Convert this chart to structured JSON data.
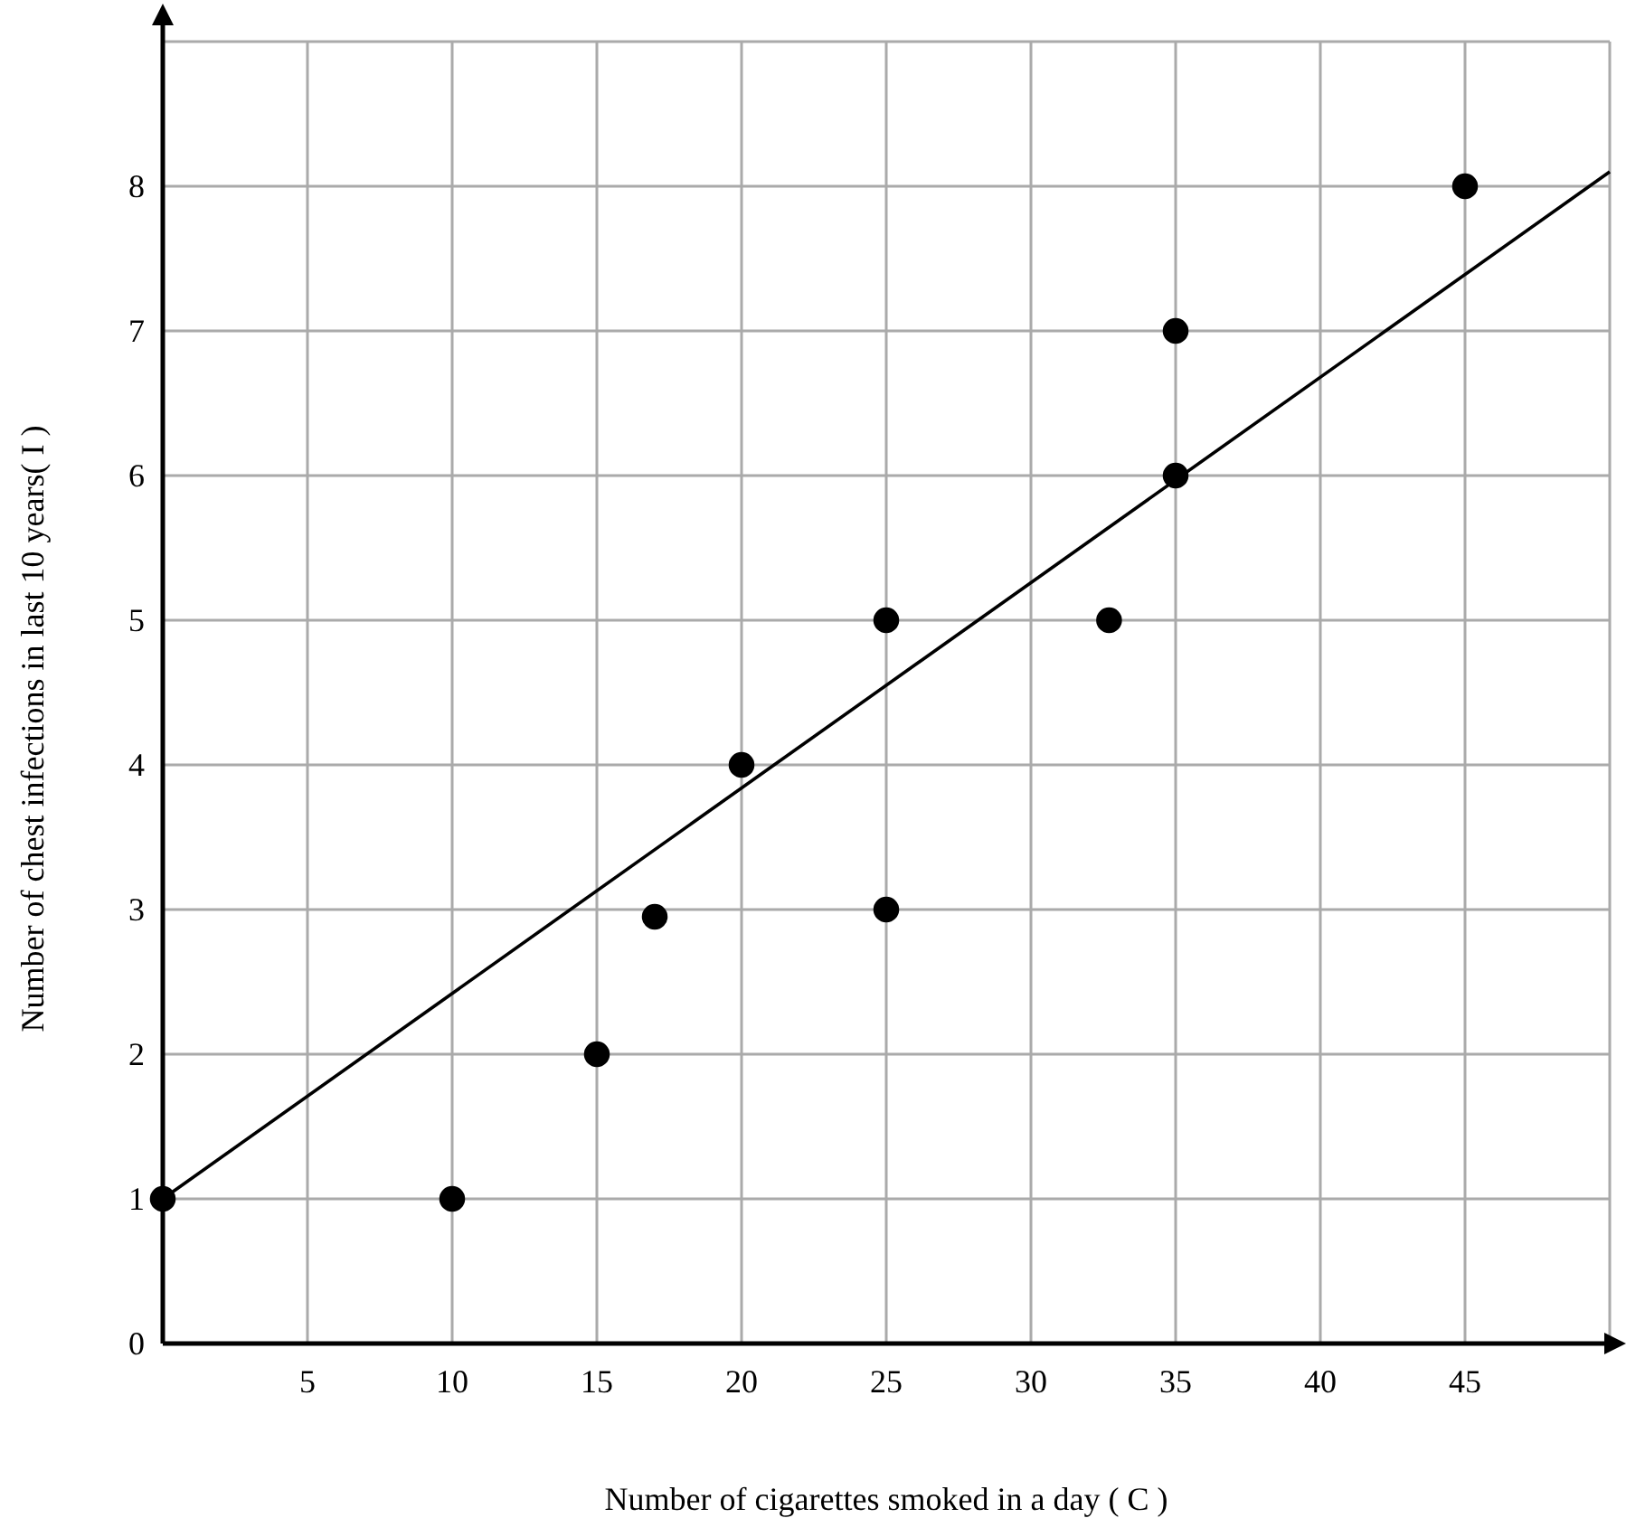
{
  "chart_data": {
    "type": "scatter",
    "xlabel": "Number of cigarettes smoked in a day ( C )",
    "ylabel": "Number of chest infections in last 10 years( I )",
    "xlim": [
      0,
      50
    ],
    "xticks": [
      5,
      10,
      15,
      20,
      25,
      30,
      35,
      40,
      45,
      {
        "value": 50,
        "label": null
      }
    ],
    "ylim": [
      0,
      9
    ],
    "yticks": [
      0,
      1,
      2,
      3,
      4,
      5,
      6,
      7,
      8,
      {
        "value": 9,
        "label": null
      }
    ],
    "grid": true,
    "series": [
      {
        "marker": "circle",
        "color": "#000000",
        "x": [
          0,
          10,
          15,
          17,
          20,
          25,
          25,
          32.7,
          35,
          35,
          45
        ],
        "values": [
          1,
          1,
          2,
          2.95,
          4,
          5,
          3,
          5,
          7,
          6,
          8
        ]
      },
      {
        "type": "line",
        "marker": "none",
        "color": "#000000",
        "x": [
          0,
          50
        ],
        "values": [
          1,
          8.1
        ]
      }
    ]
  }
}
